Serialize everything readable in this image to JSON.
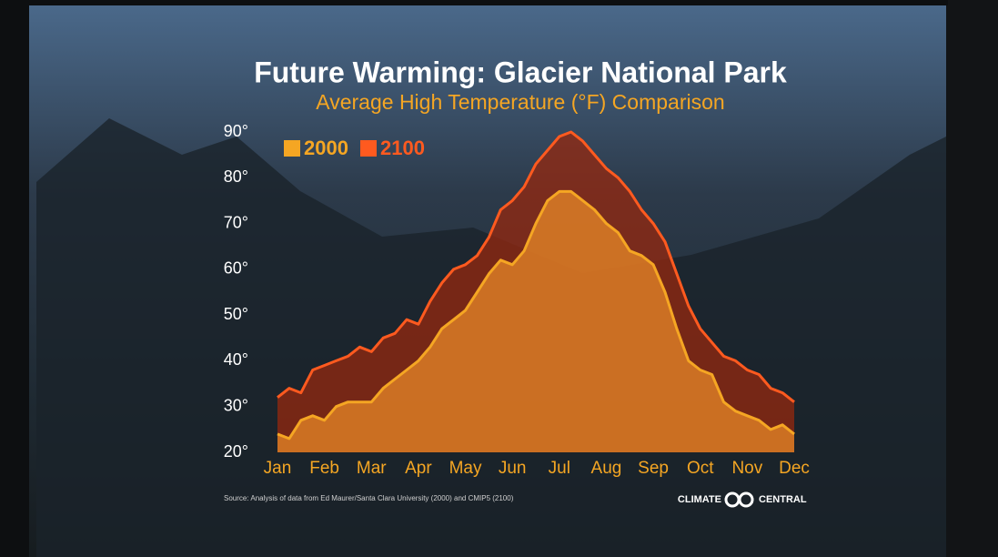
{
  "chart_data": {
    "type": "area",
    "title": "Future Warming: Glacier National Park",
    "subtitle": "Average High Temperature (°F) Comparison",
    "source": "Source: Analysis of data from Ed Maurer/Santa Clara University (2000) and CMIP5 (2100)",
    "brand": [
      "CLIMATE",
      "CENTRAL"
    ],
    "categories": [
      "Jan",
      null,
      null,
      null,
      "Feb",
      null,
      null,
      null,
      "Mar",
      null,
      null,
      null,
      "Apr",
      null,
      null,
      null,
      "May",
      null,
      null,
      null,
      "Jun",
      null,
      null,
      null,
      "Jul",
      null,
      null,
      null,
      "Aug",
      null,
      null,
      null,
      "Sep",
      null,
      null,
      null,
      "Oct",
      null,
      null,
      null,
      "Nov",
      null,
      null,
      null,
      "Dec"
    ],
    "series": [
      {
        "name": "2100",
        "color": "#ff5a1f",
        "values": [
          32,
          34,
          33,
          38,
          39,
          40,
          41,
          43,
          42,
          45,
          46,
          49,
          48,
          53,
          57,
          60,
          61,
          63,
          67,
          73,
          75,
          78,
          83,
          86,
          89,
          90,
          88,
          85,
          82,
          80,
          77,
          73,
          70,
          66,
          59,
          52,
          47,
          44,
          41,
          40,
          38,
          37,
          34,
          33,
          31
        ]
      },
      {
        "name": "2000",
        "color": "#f5a623",
        "values": [
          24,
          23,
          27,
          28,
          27,
          30,
          31,
          31,
          31,
          34,
          36,
          38,
          40,
          43,
          47,
          49,
          51,
          55,
          59,
          62,
          61,
          64,
          70,
          75,
          77,
          77,
          75,
          73,
          70,
          68,
          64,
          63,
          61,
          55,
          47,
          40,
          38,
          37,
          31,
          29,
          28,
          27,
          25,
          26,
          24
        ]
      }
    ],
    "ylim": [
      20,
      90
    ],
    "yticks": [
      {
        "value": 20,
        "label": "20°"
      },
      {
        "value": 30,
        "label": "30°"
      },
      {
        "value": 40,
        "label": "40°"
      },
      {
        "value": 50,
        "label": "50°"
      },
      {
        "value": 60,
        "label": "60°"
      },
      {
        "value": 70,
        "label": "70°"
      },
      {
        "value": 80,
        "label": "80°"
      },
      {
        "value": 90,
        "label": "90°"
      }
    ],
    "grid": false
  }
}
